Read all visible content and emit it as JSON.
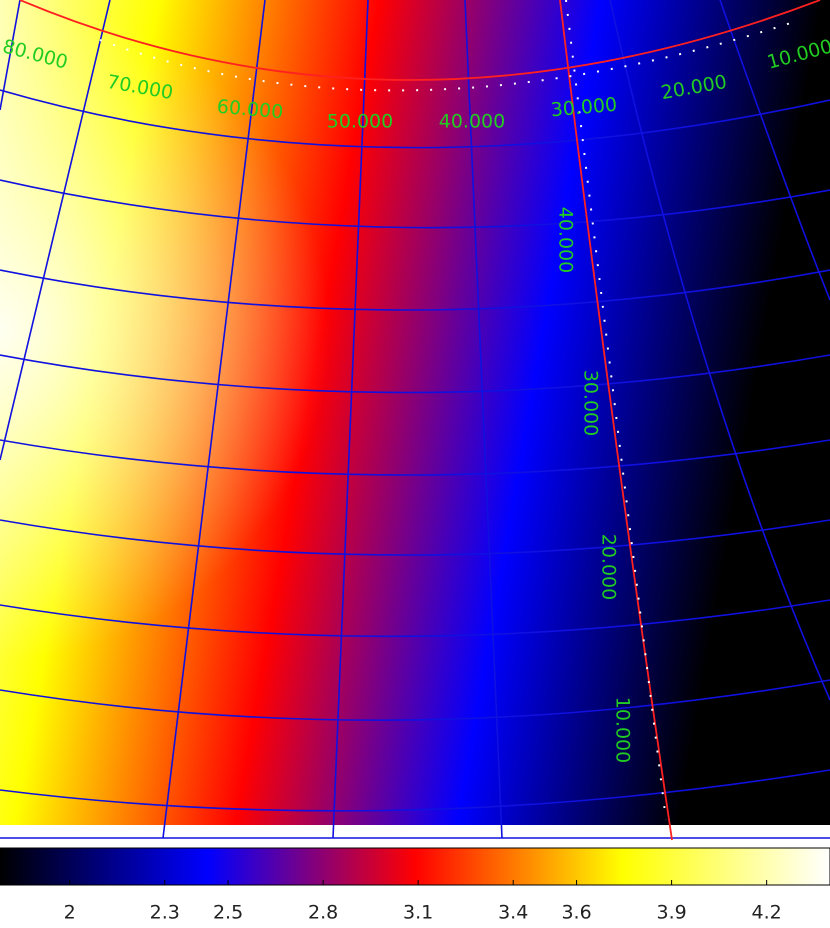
{
  "chart_data": {
    "type": "image",
    "colormap": [
      "#000000",
      "#0000ff",
      "#ff0000",
      "#ffff00",
      "#ffffff"
    ],
    "grid_labels_top": [
      "80.000",
      "70.000",
      "60.000",
      "50.000",
      "40.000",
      "30.000",
      "20.000",
      "10.000"
    ],
    "grid_labels_right": [
      "40.000",
      "30.000",
      "20.000",
      "10.000"
    ],
    "colorbar_lim": [
      1.78,
      4.4
    ],
    "colorbar_ticks": [
      2,
      2.3,
      2.5,
      2.8,
      3.1,
      3.4,
      3.6,
      3.9,
      4.2
    ]
  }
}
